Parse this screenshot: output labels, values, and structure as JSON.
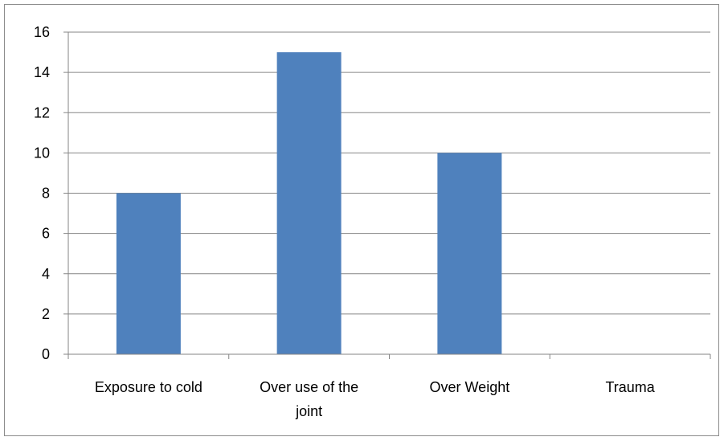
{
  "chart_data": {
    "type": "bar",
    "title": "",
    "xlabel": "",
    "ylabel": "",
    "categories": [
      "Exposure to cold",
      "Over use of the joint",
      "Over Weight",
      "Trauma"
    ],
    "category_lines": [
      [
        "Exposure to cold"
      ],
      [
        "Over use of the",
        "joint"
      ],
      [
        "Over Weight"
      ],
      [
        "Trauma"
      ]
    ],
    "values": [
      8,
      15,
      10,
      0
    ],
    "ylim": [
      0,
      16
    ],
    "yticks": [
      0,
      2,
      4,
      6,
      8,
      10,
      12,
      14,
      16
    ],
    "grid": true,
    "legend": "none",
    "bar_color": "#4f81bd"
  }
}
